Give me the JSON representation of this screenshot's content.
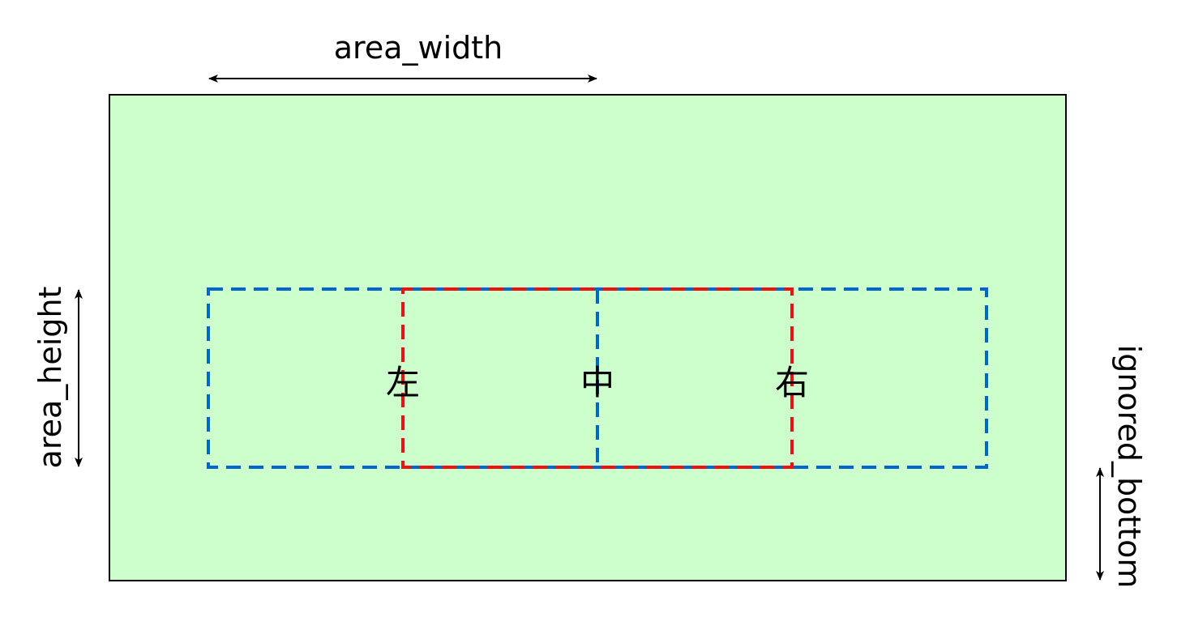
{
  "colors": {
    "screen_fill": "#ccffcc",
    "screen_border": "#000000",
    "blue_dash": "#0066cc",
    "red_dash": "#ee1111",
    "arrow": "#000000"
  },
  "labels": {
    "area_width": "area_width",
    "area_height": "area_height",
    "ignored_bottom": "ignored_bottom"
  },
  "regions": {
    "left": "左",
    "center": "中",
    "right": "右"
  }
}
